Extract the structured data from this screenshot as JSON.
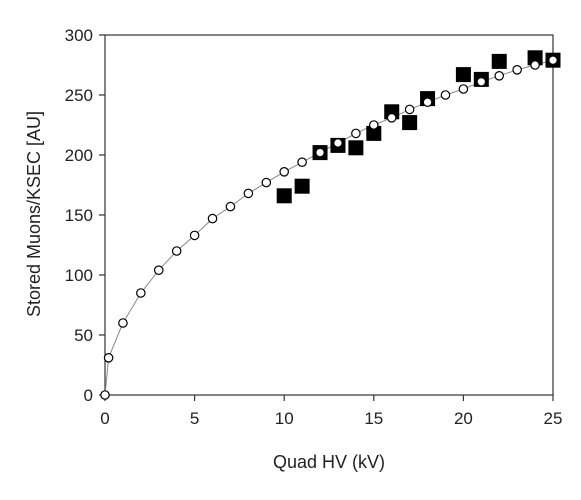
{
  "chart_data": {
    "type": "scatter",
    "title": "",
    "xlabel": "Quad HV (kV)",
    "ylabel": "Stored Muons/KSEC [AU]",
    "xlim": [
      0,
      25
    ],
    "ylim": [
      0,
      300
    ],
    "xticks": [
      "0",
      "5",
      "10",
      "15",
      "20",
      "25"
    ],
    "yticks": [
      "0",
      "50",
      "100",
      "150",
      "200",
      "250",
      "300"
    ],
    "grid": false,
    "legend": "none",
    "series": [
      {
        "marker": "open-circle",
        "line": "thin-gray",
        "color": "#000000",
        "x": [
          0,
          0.2,
          1,
          2,
          3,
          4,
          5,
          6,
          7,
          8,
          9,
          10,
          11,
          12,
          13,
          14,
          15,
          16,
          17,
          18,
          19,
          20,
          21,
          22,
          23,
          24,
          25
        ],
        "y": [
          0,
          31,
          60,
          85,
          104,
          120,
          133,
          147,
          157,
          168,
          177,
          186,
          194,
          202,
          210,
          218,
          225,
          231,
          238,
          244,
          250,
          255,
          261,
          266,
          271,
          275,
          279
        ]
      },
      {
        "marker": "filled-square",
        "line": "none",
        "color": "#000000",
        "x": [
          10,
          11,
          12,
          13,
          14,
          15,
          16,
          17,
          18,
          20,
          21,
          22,
          24,
          25
        ],
        "y": [
          166,
          174,
          202,
          208,
          206,
          218,
          236,
          227,
          247,
          267,
          263,
          278,
          281,
          279
        ]
      }
    ]
  }
}
